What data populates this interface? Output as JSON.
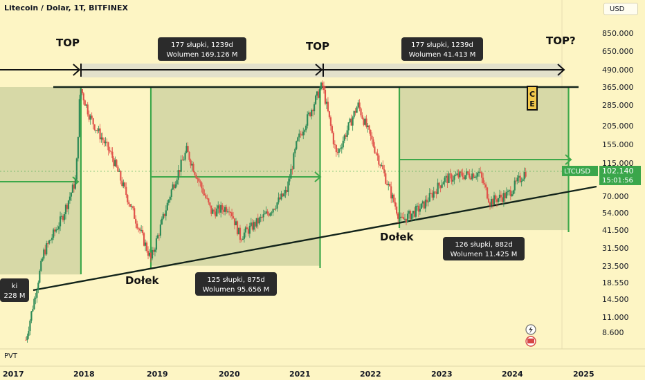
{
  "header": {
    "title": "Litecoin / Dolar, 1T, BITFINEX",
    "currency_button": "USD"
  },
  "indicator": {
    "label": "PVT"
  },
  "colors": {
    "background": "#fdf5c4",
    "zone_fill": "#c9cf9e",
    "green": "#3da84a",
    "up_candle": "#2e8b57",
    "down_candle": "#e0534a",
    "black_line": "#12231a",
    "tag_bg": "#2b2b2b",
    "price_tag_bg": "#3aa64b"
  },
  "chart_data": {
    "type": "candlestick",
    "title": "Litecoin / Dolar, 1T, BITFINEX",
    "scale": "log",
    "x_ticks": [
      "2017",
      "2018",
      "2019",
      "2020",
      "2021",
      "2022",
      "2023",
      "2024",
      "2025"
    ],
    "y_ticks": [
      "850.000",
      "650.000",
      "490.000",
      "365.000",
      "285.000",
      "205.000",
      "155.000",
      "115.000",
      "70.000",
      "54.000",
      "41.500",
      "31.500",
      "23.500",
      "18.550",
      "14.500",
      "11.000",
      "8.600"
    ],
    "ylim": [
      7.0,
      1100.0
    ],
    "current_price": {
      "symbol": "LTCUSD",
      "value": "102.140",
      "countdown": "15:01:56"
    },
    "annotations": {
      "top_1": "TOP",
      "top_2": "TOP",
      "top_3": "TOP?",
      "bottom_1": "Dołek",
      "bottom_2": "Dołek",
      "ce_marker": "CE"
    },
    "info_boxes": [
      {
        "line1": "177 słupki, 1239d",
        "line2": "Wolumen 169.126 M"
      },
      {
        "line1": "177 słupki, 1239d",
        "line2": "Wolumen 41.413 M"
      },
      {
        "line1": "125 słupki, 875d",
        "line2": "Wolumen 95.656 M"
      },
      {
        "line1": "126 słupki, 882d",
        "line2": "Wolumen 11.425 M"
      },
      {
        "line1": "ki",
        "line2": "228 M"
      }
    ],
    "key_levels": {
      "resistance": 365.0,
      "current_range_top": 115.0
    },
    "series": [
      {
        "name": "LTCUSD weekly",
        "anchor_points": [
          {
            "t": 2017.2,
            "price": 8.0
          },
          {
            "t": 2017.45,
            "price": 30
          },
          {
            "t": 2017.7,
            "price": 50
          },
          {
            "t": 2017.9,
            "price": 90
          },
          {
            "t": 2017.96,
            "price": 365
          },
          {
            "t": 2018.1,
            "price": 230
          },
          {
            "t": 2018.4,
            "price": 130
          },
          {
            "t": 2018.7,
            "price": 55
          },
          {
            "t": 2018.95,
            "price": 27
          },
          {
            "t": 2019.25,
            "price": 80
          },
          {
            "t": 2019.45,
            "price": 140
          },
          {
            "t": 2019.8,
            "price": 55
          },
          {
            "t": 2020.05,
            "price": 60
          },
          {
            "t": 2020.2,
            "price": 38
          },
          {
            "t": 2020.6,
            "price": 55
          },
          {
            "t": 2020.85,
            "price": 75
          },
          {
            "t": 2021.0,
            "price": 160
          },
          {
            "t": 2021.35,
            "price": 380
          },
          {
            "t": 2021.55,
            "price": 130
          },
          {
            "t": 2021.85,
            "price": 280
          },
          {
            "t": 2022.15,
            "price": 120
          },
          {
            "t": 2022.45,
            "price": 48
          },
          {
            "t": 2022.75,
            "price": 60
          },
          {
            "t": 2023.05,
            "price": 90
          },
          {
            "t": 2023.25,
            "price": 95
          },
          {
            "t": 2023.55,
            "price": 100
          },
          {
            "t": 2023.7,
            "price": 65
          },
          {
            "t": 2023.95,
            "price": 72
          },
          {
            "t": 2024.2,
            "price": 102
          }
        ]
      }
    ]
  }
}
